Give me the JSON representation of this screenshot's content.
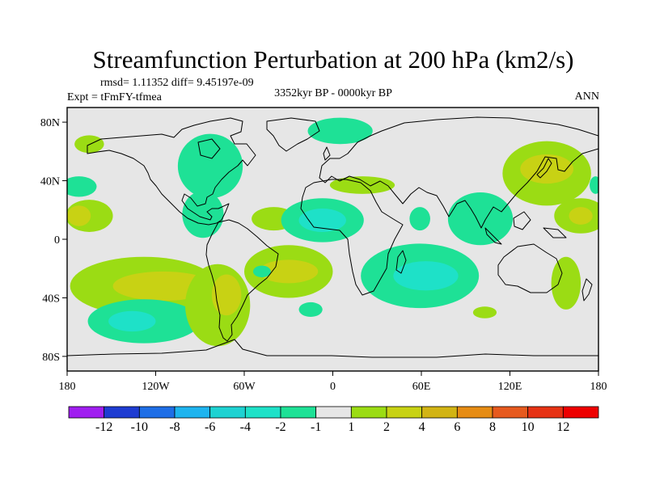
{
  "chart_data": {
    "type": "heatmap",
    "title": "Streamfunction Perturbation at 200 hPa (km2/s)",
    "stats_text": "rmsd= 1.11352 diff= 9.45197e-09",
    "left_label": "Expt = tFmFY-tfmea",
    "center_label": "3352kyr BP - 0000kyr BP",
    "right_label": "ANN",
    "projection": "cylindrical-equidistant",
    "xlim": [
      -180,
      180
    ],
    "ylim": [
      -90,
      90
    ],
    "x_ticks": [
      {
        "value": -180,
        "label": "180"
      },
      {
        "value": -120,
        "label": "120W"
      },
      {
        "value": -60,
        "label": "60W"
      },
      {
        "value": 0,
        "label": "0"
      },
      {
        "value": 60,
        "label": "60E"
      },
      {
        "value": 120,
        "label": "120E"
      },
      {
        "value": 180,
        "label": "180"
      }
    ],
    "y_ticks": [
      {
        "value": 80,
        "label": "80N"
      },
      {
        "value": 40,
        "label": "40N"
      },
      {
        "value": 0,
        "label": "0"
      },
      {
        "value": -40,
        "label": "40S"
      },
      {
        "value": -80,
        "label": "80S"
      }
    ],
    "colorbar": {
      "labels": [
        "-12",
        "-10",
        "-8",
        "-6",
        "-4",
        "-2",
        "-1",
        "1",
        "2",
        "4",
        "6",
        "8",
        "10",
        "12"
      ],
      "colors": [
        "#a01ef0",
        "#1e3cd2",
        "#1e6ee6",
        "#1eb4ef",
        "#1ed2d2",
        "#1ee1c8",
        "#1ee196",
        "#e6e6e6",
        "#9bdc14",
        "#c8d214",
        "#d2b414",
        "#e68c14",
        "#e65a1e",
        "#e63214",
        "#ee0000"
      ]
    },
    "anomalies": [
      {
        "lon": -172,
        "lat": 36,
        "rx": 12,
        "ry": 7,
        "value": -2
      },
      {
        "lon": -165,
        "lat": 65,
        "rx": 10,
        "ry": 6,
        "value": 1.5
      },
      {
        "lon": -165,
        "lat": 16,
        "rx": 16,
        "ry": 11,
        "value": 1.5
      },
      {
        "lon": -172,
        "lat": 16,
        "rx": 8,
        "ry": 7,
        "value": 3
      },
      {
        "lon": -128,
        "lat": -32,
        "rx": 50,
        "ry": 20,
        "value": 1.5
      },
      {
        "lon": -115,
        "lat": -32,
        "rx": 34,
        "ry": 10,
        "value": 3
      },
      {
        "lon": -128,
        "lat": -56,
        "rx": 38,
        "ry": 15,
        "value": -1.5
      },
      {
        "lon": -136,
        "lat": -56,
        "rx": 16,
        "ry": 7,
        "value": -3
      },
      {
        "lon": -83,
        "lat": 50,
        "rx": 22,
        "ry": 22,
        "value": -1.5
      },
      {
        "lon": -88,
        "lat": 17,
        "rx": 14,
        "ry": 16,
        "value": -1.5
      },
      {
        "lon": -78,
        "lat": -45,
        "rx": 22,
        "ry": 28,
        "value": 1.5
      },
      {
        "lon": -72,
        "lat": -38,
        "rx": 10,
        "ry": 14,
        "value": 3
      },
      {
        "lon": -40,
        "lat": 14,
        "rx": 15,
        "ry": 8,
        "value": 1.5
      },
      {
        "lon": -30,
        "lat": -22,
        "rx": 30,
        "ry": 18,
        "value": 1.5
      },
      {
        "lon": -30,
        "lat": -22,
        "rx": 20,
        "ry": 8,
        "value": 3
      },
      {
        "lon": -48,
        "lat": -22,
        "rx": 6,
        "ry": 4,
        "value": -1.5
      },
      {
        "lon": -7,
        "lat": 13,
        "rx": 28,
        "ry": 15,
        "value": -1.5
      },
      {
        "lon": -7,
        "lat": 13,
        "rx": 16,
        "ry": 8,
        "value": -3
      },
      {
        "lon": 5,
        "lat": 74,
        "rx": 22,
        "ry": 9,
        "value": -1.5
      },
      {
        "lon": 20,
        "lat": 37,
        "rx": 22,
        "ry": 6,
        "value": 1.5
      },
      {
        "lon": 59,
        "lat": -25,
        "rx": 40,
        "ry": 22,
        "value": -1.5
      },
      {
        "lon": 63,
        "lat": -25,
        "rx": 22,
        "ry": 10,
        "value": -3
      },
      {
        "lon": 59,
        "lat": 14,
        "rx": 7,
        "ry": 8,
        "value": -1.5
      },
      {
        "lon": 100,
        "lat": 14,
        "rx": 22,
        "ry": 18,
        "value": -1.5
      },
      {
        "lon": 145,
        "lat": 45,
        "rx": 30,
        "ry": 22,
        "value": 1.5
      },
      {
        "lon": 145,
        "lat": 48,
        "rx": 18,
        "ry": 10,
        "value": 3
      },
      {
        "lon": 168,
        "lat": 16,
        "rx": 18,
        "ry": 12,
        "value": 1.5
      },
      {
        "lon": 168,
        "lat": 16,
        "rx": 8,
        "ry": 6,
        "value": 3
      },
      {
        "lon": 158,
        "lat": -30,
        "rx": 10,
        "ry": 18,
        "value": 1.5
      },
      {
        "lon": -15,
        "lat": -48,
        "rx": 8,
        "ry": 5,
        "value": -1.5
      },
      {
        "lon": 103,
        "lat": -50,
        "rx": 8,
        "ry": 4,
        "value": 1.5
      },
      {
        "lon": 178,
        "lat": 37,
        "rx": 4,
        "ry": 6,
        "value": -1.5
      }
    ]
  }
}
